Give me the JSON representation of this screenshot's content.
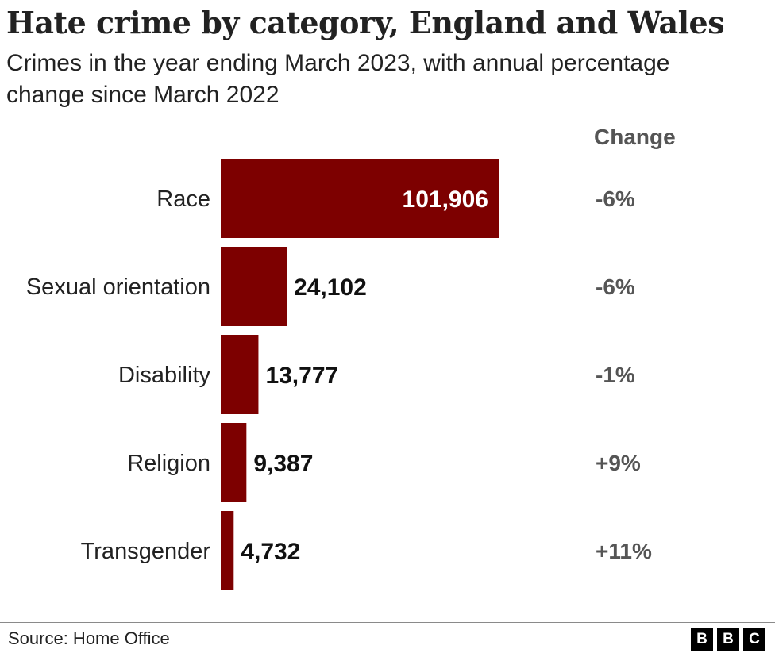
{
  "title": "Hate crime by category, England and Wales",
  "subtitle": "Crimes in the year ending March 2023, with annual percentage change since March 2022",
  "change_header": "Change",
  "source": "Source: Home Office",
  "logo": [
    "B",
    "B",
    "C"
  ],
  "colors": {
    "bar": "#7d0000",
    "inside_label": "#ffffff",
    "value_label": "#111111",
    "change": "#555555"
  },
  "chart_data": {
    "type": "bar",
    "orientation": "horizontal",
    "categories": [
      "Race",
      "Sexual orientation",
      "Disability",
      "Religion",
      "Transgender"
    ],
    "values": [
      101906,
      24102,
      13777,
      9387,
      4732
    ],
    "value_labels": [
      "101,906",
      "24,102",
      "13,777",
      "9,387",
      "4,732"
    ],
    "change": [
      "-6%",
      "-6%",
      "-1%",
      "+9%",
      "+11%"
    ],
    "xlim": [
      0,
      101906
    ],
    "grid": false
  }
}
